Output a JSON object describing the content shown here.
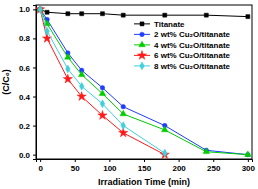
{
  "chart_data": {
    "type": "line",
    "x_label": "Irradiation Time (min)",
    "y_label": "(C/C₀)",
    "x": [
      0,
      10,
      40,
      60,
      90,
      120,
      180,
      240,
      300
    ],
    "series": [
      {
        "name": "Titanate",
        "color": "#000000",
        "marker": "square",
        "values": [
          1.0,
          0.98,
          0.97,
          0.97,
          0.97,
          0.96,
          0.96,
          0.96,
          0.95
        ]
      },
      {
        "name": "2 wt% Cu₂O/titanate",
        "color": "#1f3dff",
        "marker": "circle",
        "values": [
          1.0,
          0.93,
          0.7,
          0.58,
          0.46,
          0.33,
          0.2,
          0.03,
          0.0
        ]
      },
      {
        "name": "4 wt% Cu₂O/titanate",
        "color": "#00cc00",
        "marker": "triangle",
        "values": [
          1.0,
          0.9,
          0.67,
          0.55,
          0.42,
          0.28,
          0.17,
          0.02,
          0.0
        ]
      },
      {
        "name": "6 wt% Cu₂O/titanate",
        "color": "#ff1a1a",
        "marker": "star",
        "values": [
          1.0,
          0.8,
          0.52,
          0.4,
          0.27,
          0.15,
          0.0,
          null,
          null
        ]
      },
      {
        "name": "8 wt% Cu₂O/titanate",
        "color": "#3fd0dc",
        "marker": "diamond",
        "values": [
          1.0,
          0.85,
          0.59,
          0.47,
          0.35,
          0.2,
          0.01,
          null,
          null
        ]
      }
    ],
    "xlim": [
      -6,
      306
    ],
    "ylim": [
      -0.03,
      1.03
    ],
    "xticks": [
      0,
      50,
      100,
      150,
      200,
      250,
      300
    ],
    "yticks": [
      {
        "value": 0,
        "label": "0.0"
      },
      0.2,
      0.4,
      0.6,
      0.8,
      {
        "value": 1,
        "label": "1.0"
      }
    ],
    "grid": false,
    "legend": "upper right"
  }
}
